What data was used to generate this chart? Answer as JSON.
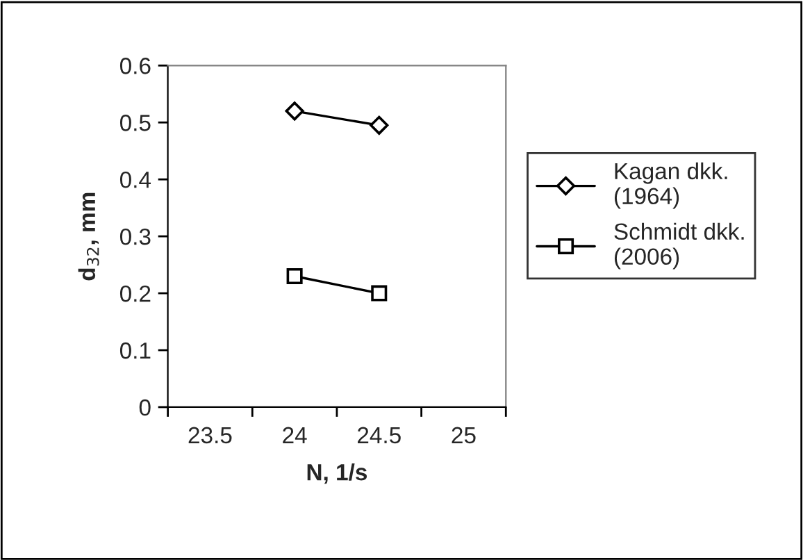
{
  "chart_data": {
    "type": "line",
    "xlabel": "N, 1/s",
    "ylabel": "d$_{32}$, mm",
    "categories": [
      "23.5",
      "24",
      "24.5",
      "25"
    ],
    "series": [
      {
        "name": "Kagan dkk.\n(1964)",
        "color": "#000000",
        "marker": "diamond",
        "values": [
          null,
          0.52,
          0.495,
          null
        ]
      },
      {
        "name": "Schmidt dkk.\n(2006)",
        "color": "#000000",
        "marker": "square",
        "values": [
          null,
          0.23,
          0.2,
          null
        ]
      }
    ],
    "ylim": [
      0,
      0.6
    ],
    "yticks": [
      0,
      0.1,
      0.2,
      0.3,
      0.4,
      0.5,
      0.6
    ],
    "grid": false,
    "legend": "right",
    "line_style": "solid"
  }
}
